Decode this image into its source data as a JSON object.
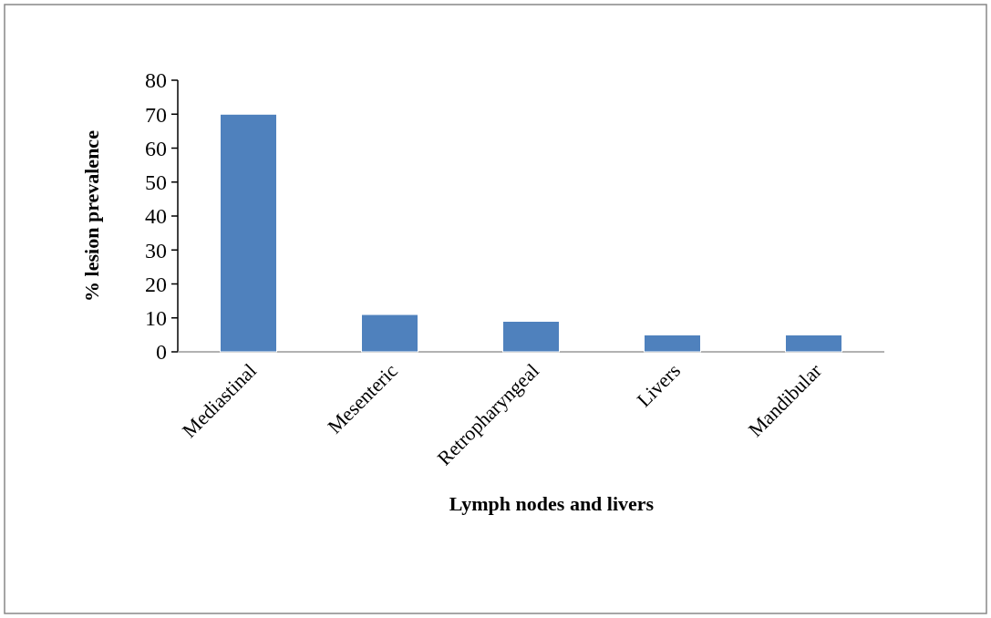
{
  "chart_data": {
    "type": "bar",
    "xlabel": "Lymph nodes and livers",
    "ylabel": "% lesion prevalence",
    "categories": [
      "Mediastinal",
      "Mesenteric",
      "Retropharyngeal",
      "Livers",
      "Mandibular"
    ],
    "values": [
      70,
      11,
      9,
      5,
      5
    ],
    "color": "#4f81bd",
    "ylim": [
      0,
      80
    ],
    "yticks": [
      0,
      10,
      20,
      30,
      40,
      50,
      60,
      70,
      80
    ],
    "grid": false
  }
}
